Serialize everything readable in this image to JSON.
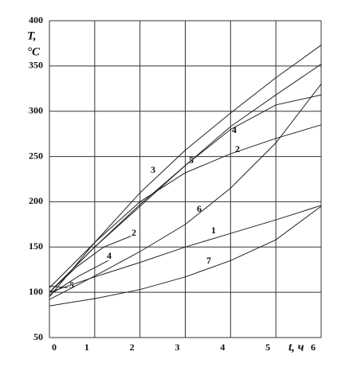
{
  "chart_data": {
    "type": "line",
    "y_label": "T,",
    "y_unit": "°C",
    "x_label": "t, ч",
    "xlim": [
      0,
      6
    ],
    "xticks": [
      0,
      1,
      2,
      3,
      4,
      5,
      6
    ],
    "ylim": [
      50,
      400
    ],
    "yticks": [
      50,
      100,
      150,
      200,
      250,
      300,
      350,
      400
    ],
    "grid": true,
    "color": "#222",
    "series": [
      {
        "name": "1",
        "x": [
          0,
          1,
          2,
          3,
          4,
          5,
          6
        ],
        "values": [
          100,
          117,
          133,
          150,
          165,
          180,
          196
        ]
      },
      {
        "name": "7",
        "x": [
          0,
          1,
          2,
          3,
          4,
          5,
          6
        ],
        "values": [
          85,
          93,
          103,
          117,
          135,
          158,
          195
        ]
      },
      {
        "name": "6",
        "x": [
          0,
          1,
          2,
          3,
          4,
          5,
          6
        ],
        "values": [
          92,
          118,
          145,
          175,
          215,
          265,
          330
        ]
      },
      {
        "name": "3",
        "x": [
          0,
          1,
          2,
          3,
          4,
          5,
          6
        ],
        "values": [
          95,
          155,
          210,
          257,
          298,
          337,
          373
        ]
      },
      {
        "name": "5",
        "x": [
          0,
          1,
          2,
          3,
          4,
          5,
          6
        ],
        "values": [
          100,
          150,
          197,
          240,
          283,
          318,
          352
        ]
      },
      {
        "name": "4",
        "x": [
          0,
          1,
          2,
          3,
          4,
          5,
          6
        ],
        "values": [
          100,
          150,
          195,
          240,
          280,
          307,
          318
        ]
      },
      {
        "name": "2",
        "x": [
          0,
          1,
          2,
          3,
          4,
          5,
          6
        ],
        "values": [
          105,
          155,
          200,
          232,
          253,
          270,
          285
        ]
      },
      {
        "name": "2",
        "x": [
          0,
          0.6,
          1.2,
          1.8
        ],
        "values": [
          100,
          128,
          150,
          162
        ]
      },
      {
        "name": "4",
        "x": [
          0,
          0.65,
          1.3
        ],
        "values": [
          97,
          118,
          135
        ]
      },
      {
        "name": "5",
        "x": [
          0,
          0.4
        ],
        "values": [
          107,
          105
        ]
      }
    ]
  }
}
